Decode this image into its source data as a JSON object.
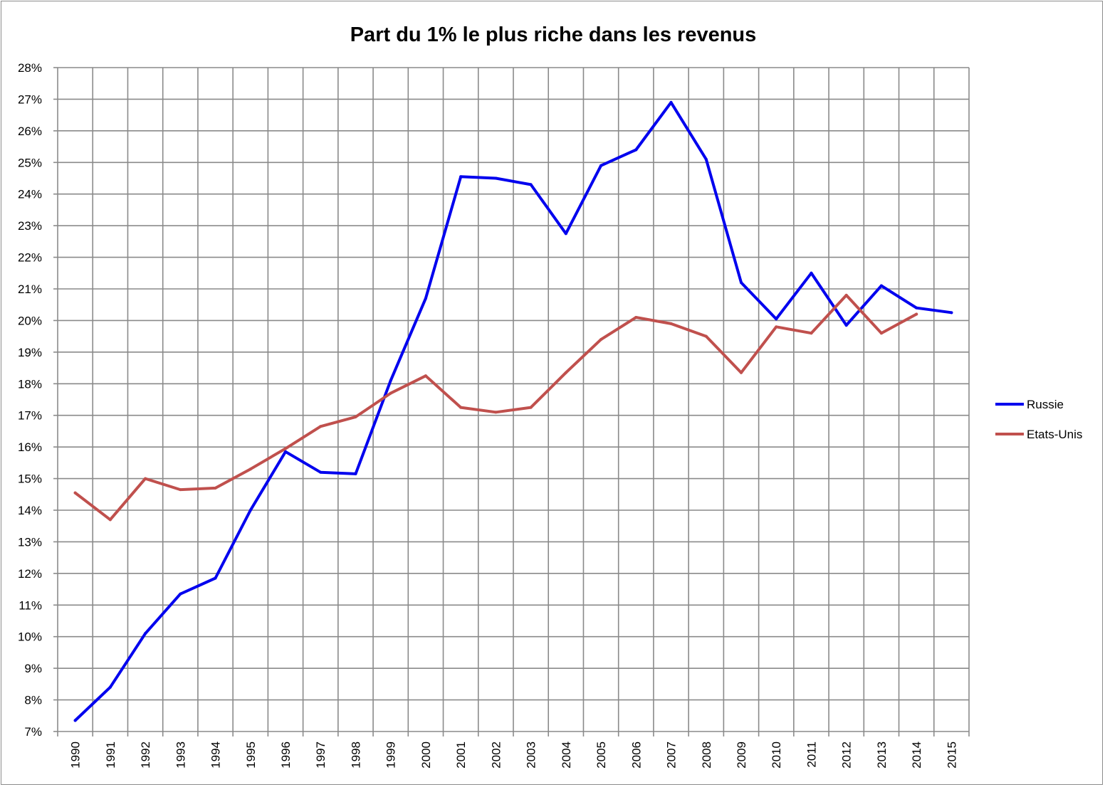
{
  "chart_data": {
    "type": "line",
    "title": "Part du 1% le plus riche dans les revenus",
    "xlabel": "",
    "ylabel": "",
    "ylim": [
      0.07,
      0.28
    ],
    "grid": true,
    "legend_position": "right",
    "x": [
      "1990",
      "1991",
      "1992",
      "1993",
      "1994",
      "1995",
      "1996",
      "1997",
      "1998",
      "1999",
      "2000",
      "2001",
      "2002",
      "2003",
      "2004",
      "2005",
      "2006",
      "2007",
      "2008",
      "2009",
      "2010",
      "2011",
      "2012",
      "2013",
      "2014",
      "2015"
    ],
    "y_ticks": [
      "7%",
      "8%",
      "9%",
      "10%",
      "11%",
      "12%",
      "13%",
      "14%",
      "15%",
      "16%",
      "17%",
      "18%",
      "19%",
      "20%",
      "21%",
      "22%",
      "23%",
      "24%",
      "25%",
      "26%",
      "27%",
      "28%"
    ],
    "series": [
      {
        "name": "Russie",
        "color": "#0000ee",
        "values": [
          0.0735,
          0.084,
          0.101,
          0.1135,
          0.1185,
          0.14,
          0.1585,
          0.152,
          0.1515,
          0.181,
          0.207,
          0.2455,
          0.245,
          0.243,
          0.2275,
          0.249,
          0.254,
          0.269,
          0.251,
          0.212,
          0.2005,
          0.215,
          0.1985,
          0.211,
          0.204,
          0.2025
        ]
      },
      {
        "name": "Etats-Unis",
        "color": "#c0504d",
        "values": [
          0.1455,
          0.137,
          0.15,
          0.1465,
          0.147,
          0.153,
          0.1595,
          0.1665,
          0.1695,
          0.177,
          0.1825,
          0.1725,
          0.171,
          0.1725,
          0.1835,
          0.194,
          0.201,
          0.199,
          0.195,
          0.1835,
          0.198,
          0.196,
          0.208,
          0.196,
          0.202,
          null
        ]
      }
    ]
  }
}
